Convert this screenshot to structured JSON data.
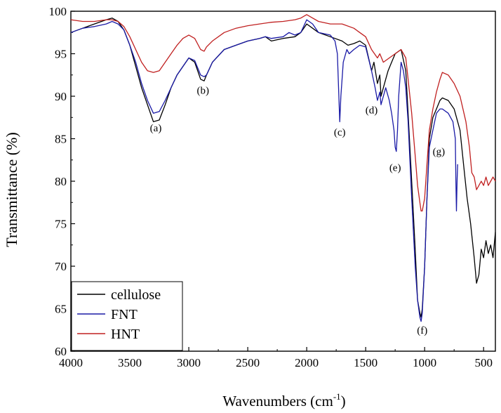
{
  "chart_data": {
    "type": "line",
    "title": "",
    "xlabel": "Wavenumbers (cm",
    "xlabel_sup": "-1",
    "xlabel_end": ")",
    "ylabel": "Transmittance (%)",
    "xlim": [
      4000,
      400
    ],
    "ylim": [
      60,
      100
    ],
    "x_reversed": true,
    "grid": false,
    "legend_position": "bottom-left",
    "x_ticks": [
      4000,
      3500,
      3000,
      2500,
      2000,
      1500,
      1000,
      500
    ],
    "x_tick_labels": [
      "4000",
      "3500",
      "3000",
      "2500",
      "2000",
      "1500",
      "1000",
      "500"
    ],
    "y_ticks": [
      60,
      65,
      70,
      75,
      80,
      85,
      90,
      95,
      100
    ],
    "y_tick_labels": [
      "60",
      "65",
      "70",
      "75",
      "80",
      "85",
      "90",
      "95",
      "100"
    ],
    "series": [
      {
        "name": "cellulose",
        "color": "#000000",
        "x": [
          4000,
          3900,
          3800,
          3700,
          3650,
          3600,
          3550,
          3500,
          3450,
          3400,
          3350,
          3300,
          3250,
          3200,
          3150,
          3100,
          3050,
          3000,
          2950,
          2900,
          2870,
          2850,
          2800,
          2700,
          2600,
          2500,
          2400,
          2350,
          2300,
          2200,
          2100,
          2050,
          2000,
          1950,
          1900,
          1800,
          1700,
          1650,
          1600,
          1550,
          1500,
          1450,
          1430,
          1400,
          1380,
          1370,
          1330,
          1310,
          1280,
          1250,
          1200,
          1160,
          1140,
          1110,
          1080,
          1060,
          1040,
          1030,
          1020,
          1000,
          980,
          960,
          930,
          900,
          870,
          850,
          800,
          750,
          700,
          670,
          640,
          610,
          580,
          560,
          540,
          520,
          500,
          480,
          460,
          440,
          420,
          400
        ],
        "y": [
          97.5,
          98.0,
          98.5,
          99.0,
          99.2,
          98.8,
          97.8,
          96.0,
          93.5,
          91.0,
          89.0,
          87.0,
          87.2,
          89.0,
          91.0,
          92.5,
          93.5,
          94.5,
          94.0,
          92.0,
          91.8,
          92.5,
          94.0,
          95.5,
          96.0,
          96.5,
          96.8,
          97.0,
          96.5,
          96.8,
          97.0,
          97.5,
          98.5,
          98.0,
          97.5,
          97.0,
          96.5,
          96.0,
          96.2,
          96.5,
          96.0,
          93.0,
          94.0,
          91.5,
          92.5,
          90.0,
          92.0,
          93.0,
          94.0,
          95.0,
          95.5,
          93.0,
          88.0,
          80.0,
          72.0,
          66.0,
          64.5,
          64.0,
          65.0,
          70.0,
          78.0,
          85.0,
          87.5,
          88.5,
          89.5,
          89.8,
          89.5,
          88.5,
          86.0,
          82.0,
          78.0,
          75.0,
          71.0,
          68.0,
          69.0,
          72.0,
          71.0,
          73.0,
          71.5,
          72.5,
          71.0,
          74.0
        ]
      },
      {
        "name": "FNT",
        "color": "#1a1aa6",
        "x": [
          4000,
          3900,
          3800,
          3700,
          3650,
          3600,
          3550,
          3500,
          3450,
          3400,
          3350,
          3300,
          3250,
          3200,
          3150,
          3100,
          3050,
          3000,
          2950,
          2900,
          2870,
          2850,
          2800,
          2700,
          2600,
          2500,
          2400,
          2350,
          2300,
          2200,
          2150,
          2100,
          2050,
          2000,
          1950,
          1900,
          1800,
          1760,
          1740,
          1730,
          1720,
          1710,
          1690,
          1660,
          1640,
          1600,
          1550,
          1500,
          1450,
          1420,
          1400,
          1380,
          1370,
          1330,
          1300,
          1280,
          1260,
          1250,
          1240,
          1230,
          1220,
          1200,
          1180,
          1160,
          1140,
          1110,
          1080,
          1060,
          1040,
          1030,
          1020,
          1000,
          980,
          960,
          930,
          900,
          870,
          850,
          800,
          760,
          740,
          735,
          730,
          725,
          720
        ],
        "y": [
          97.5,
          98.0,
          98.2,
          98.5,
          98.8,
          98.5,
          97.8,
          96.0,
          94.0,
          91.5,
          89.5,
          88.0,
          88.2,
          89.5,
          91.0,
          92.5,
          93.5,
          94.5,
          94.2,
          92.5,
          92.3,
          92.5,
          94.0,
          95.5,
          96.0,
          96.5,
          96.8,
          97.0,
          96.8,
          97.0,
          97.5,
          97.2,
          97.5,
          99.0,
          98.5,
          97.5,
          97.2,
          96.5,
          95.0,
          91.0,
          87.0,
          90.0,
          94.0,
          95.5,
          95.0,
          95.5,
          96.0,
          95.8,
          93.0,
          91.0,
          89.5,
          90.5,
          89.0,
          91.0,
          89.5,
          88.0,
          86.0,
          84.0,
          83.5,
          86.0,
          90.0,
          94.0,
          93.0,
          91.0,
          87.0,
          78.0,
          70.0,
          66.0,
          64.0,
          63.5,
          64.5,
          70.0,
          78.0,
          84.0,
          86.0,
          88.0,
          88.5,
          88.5,
          88.0,
          87.0,
          85.0,
          80.0,
          76.5,
          80.0,
          82.0
        ]
      },
      {
        "name": "HNT",
        "color": "#c02020",
        "x": [
          4000,
          3900,
          3800,
          3700,
          3650,
          3600,
          3550,
          3500,
          3450,
          3400,
          3350,
          3300,
          3250,
          3200,
          3150,
          3100,
          3050,
          3000,
          2950,
          2900,
          2870,
          2850,
          2800,
          2700,
          2600,
          2500,
          2400,
          2300,
          2200,
          2100,
          2050,
          2000,
          1950,
          1900,
          1800,
          1700,
          1600,
          1550,
          1500,
          1450,
          1400,
          1380,
          1350,
          1300,
          1250,
          1200,
          1160,
          1140,
          1110,
          1080,
          1060,
          1040,
          1030,
          1020,
          1000,
          980,
          960,
          930,
          900,
          870,
          850,
          800,
          750,
          700,
          650,
          620,
          600,
          580,
          560,
          540,
          520,
          500,
          480,
          460,
          440,
          420,
          400
        ],
        "y": [
          99.0,
          98.8,
          98.8,
          99.0,
          99.0,
          98.8,
          98.2,
          97.0,
          95.5,
          94.0,
          93.0,
          92.8,
          93.0,
          94.0,
          95.0,
          96.0,
          96.8,
          97.2,
          96.8,
          95.5,
          95.3,
          95.8,
          96.5,
          97.5,
          98.0,
          98.3,
          98.5,
          98.7,
          98.8,
          99.0,
          99.2,
          99.6,
          99.2,
          98.8,
          98.5,
          98.5,
          98.0,
          97.5,
          97.0,
          95.5,
          94.5,
          95.0,
          94.0,
          94.5,
          95.0,
          95.5,
          94.5,
          92.0,
          88.0,
          83.0,
          79.5,
          77.5,
          76.5,
          76.5,
          78.0,
          82.0,
          86.0,
          88.5,
          90.5,
          92.0,
          92.8,
          92.5,
          91.5,
          90.0,
          87.0,
          84.0,
          81.0,
          80.5,
          79.0,
          79.5,
          80.0,
          79.5,
          80.5,
          79.5,
          80.0,
          80.5,
          80.0
        ]
      }
    ],
    "annotations": [
      {
        "text": "(a)",
        "x": 3280,
        "y": 86.3
      },
      {
        "text": "(b)",
        "x": 2880,
        "y": 90.7
      },
      {
        "text": "(c)",
        "x": 1720,
        "y": 85.8
      },
      {
        "text": "(d)",
        "x": 1450,
        "y": 88.4
      },
      {
        "text": "(e)",
        "x": 1250,
        "y": 81.6
      },
      {
        "text": "(f)",
        "x": 1020,
        "y": 62.5
      },
      {
        "text": "(g)",
        "x": 880,
        "y": 83.5
      }
    ]
  }
}
